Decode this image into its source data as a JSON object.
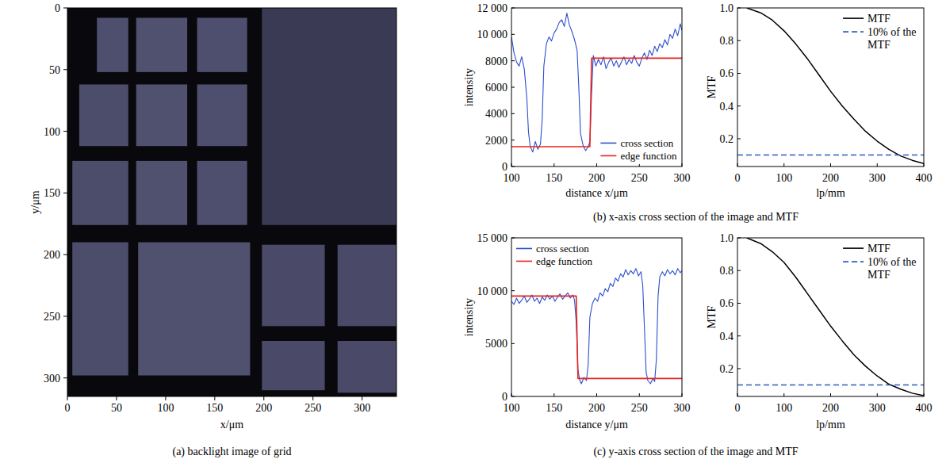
{
  "chart_data": [
    {
      "type": "image",
      "caption": "(a) backlight image of grid",
      "x_label": "x/μm",
      "y_label": "y/μm",
      "xlim": [
        0,
        335
      ],
      "ylim": [
        0,
        315
      ],
      "xticks": [
        0,
        50,
        100,
        150,
        200,
        250,
        300
      ],
      "yticks": [
        0,
        50,
        100,
        150,
        200,
        250,
        300
      ],
      "regions": [
        {
          "x": [
            30,
            62
          ],
          "y": [
            8,
            52
          ]
        },
        {
          "x": [
            70,
            122
          ],
          "y": [
            8,
            52
          ]
        },
        {
          "x": [
            132,
            183
          ],
          "y": [
            8,
            52
          ]
        },
        {
          "x": [
            12,
            62
          ],
          "y": [
            62,
            112
          ]
        },
        {
          "x": [
            70,
            122
          ],
          "y": [
            62,
            112
          ]
        },
        {
          "x": [
            132,
            183
          ],
          "y": [
            62,
            112
          ]
        },
        {
          "x": [
            5,
            62
          ],
          "y": [
            124,
            176
          ]
        },
        {
          "x": [
            70,
            122
          ],
          "y": [
            124,
            176
          ]
        },
        {
          "x": [
            132,
            183
          ],
          "y": [
            124,
            176
          ]
        },
        {
          "x": [
            5,
            62
          ],
          "y": [
            190,
            298
          ]
        },
        {
          "x": [
            72,
            186
          ],
          "y": [
            190,
            298
          ]
        },
        {
          "x": [
            198,
            335
          ],
          "y": [
            0,
            176
          ]
        },
        {
          "x": [
            198,
            262
          ],
          "y": [
            192,
            258
          ]
        },
        {
          "x": [
            275,
            335
          ],
          "y": [
            192,
            258
          ]
        },
        {
          "x": [
            198,
            262
          ],
          "y": [
            270,
            310
          ]
        },
        {
          "x": [
            275,
            335
          ],
          "y": [
            270,
            312
          ]
        }
      ],
      "colors": [
        "#4e4e6e",
        "#50506f",
        "#4e4e6e",
        "#4c4c6b",
        "#50506f",
        "#4e4e6e",
        "#4c4c6b",
        "#50506f",
        "#4e4e6e",
        "#4c4c6b",
        "#50506f",
        "#3a3a54",
        "#4a4a68",
        "#4a4a68",
        "#4a4a68",
        "#4a4a68"
      ]
    },
    {
      "type": "line",
      "caption": "(b) x-axis cross section of the image and MTF",
      "x_label": "distance x/μm",
      "y_label": "intensity",
      "xlim": [
        100,
        300
      ],
      "ylim": [
        0,
        12000
      ],
      "xticks": [
        100,
        150,
        200,
        250,
        300
      ],
      "yticks": [
        0,
        2000,
        4000,
        6000,
        8000,
        {
          "value": 10000,
          "label": "10 000"
        },
        {
          "value": 12000,
          "label": "12 000"
        }
      ],
      "legend": "lower right",
      "series": [
        {
          "name": "cross section",
          "color": "#2b4fd0",
          "x": [
            100,
            103,
            106,
            109,
            112,
            115,
            118,
            120,
            122,
            125,
            128,
            131,
            134,
            136,
            138,
            141,
            144,
            147,
            150,
            153,
            156,
            159,
            162,
            165,
            168,
            171,
            174,
            177,
            179,
            181,
            184,
            187,
            190,
            192,
            194,
            196,
            199,
            202,
            205,
            208,
            211,
            214,
            217,
            220,
            223,
            226,
            229,
            232,
            235,
            238,
            241,
            244,
            247,
            250,
            253,
            256,
            259,
            262,
            265,
            268,
            271,
            274,
            277,
            280,
            283,
            286,
            289,
            292,
            295,
            298,
            300
          ],
          "values": [
            9800,
            8600,
            7900,
            7600,
            8300,
            7400,
            5200,
            2600,
            1500,
            1100,
            1900,
            1300,
            1700,
            3500,
            7600,
            9300,
            9800,
            9500,
            10100,
            10400,
            10900,
            11100,
            10600,
            11600,
            10700,
            10200,
            9600,
            8800,
            6000,
            2500,
            1600,
            1200,
            1500,
            1900,
            5500,
            8400,
            7600,
            8100,
            7700,
            8300,
            7400,
            7900,
            8200,
            7600,
            8000,
            7500,
            7900,
            8300,
            7700,
            8100,
            7800,
            8400,
            7900,
            7600,
            8200,
            8600,
            8100,
            8800,
            8400,
            9100,
            8700,
            9300,
            9000,
            9600,
            9200,
            10000,
            9700,
            10400,
            9900,
            10800,
            10300
          ]
        },
        {
          "name": "edge function",
          "color": "#e8231f",
          "x": [
            100,
            192,
            194,
            300
          ],
          "values": [
            1500,
            1500,
            8200,
            8200
          ]
        }
      ]
    },
    {
      "type": "line",
      "x_label": "lp/mm",
      "y_label": "MTF",
      "xlim": [
        0,
        400
      ],
      "ylim": [
        0.03,
        1
      ],
      "xticks": [
        0,
        100,
        200,
        300,
        400
      ],
      "yticks": [
        0.2,
        0.4,
        0.6,
        0.8,
        {
          "value": 1,
          "label": "1.0"
        }
      ],
      "legend": "upper right",
      "series": [
        {
          "name": "MTF",
          "color": "#000000",
          "line_style": "solid",
          "x": [
            20,
            50,
            75,
            100,
            125,
            150,
            175,
            200,
            225,
            250,
            275,
            300,
            325,
            350,
            375,
            400
          ],
          "values": [
            1.0,
            0.97,
            0.925,
            0.86,
            0.78,
            0.69,
            0.59,
            0.49,
            0.4,
            0.32,
            0.245,
            0.185,
            0.135,
            0.095,
            0.068,
            0.048
          ]
        },
        {
          "name": "10% of the MTF",
          "color": "#2f5bbf",
          "line_style": "dashed",
          "x": [
            0,
            400
          ],
          "values": [
            0.1,
            0.1
          ]
        }
      ]
    },
    {
      "type": "line",
      "caption": "(c) y-axis cross section of the image and MTF",
      "x_label": "distance y/μm",
      "y_label": "intensity",
      "xlim": [
        100,
        300
      ],
      "ylim": [
        0,
        15000
      ],
      "xticks": [
        100,
        150,
        200,
        250,
        300
      ],
      "yticks": [
        0,
        5000,
        {
          "value": 10000,
          "label": "10 000"
        },
        {
          "value": 15000,
          "label": "15 000"
        }
      ],
      "legend": "upper left",
      "series": [
        {
          "name": "cross section",
          "color": "#2b4fd0",
          "x": [
            100,
            103,
            106,
            109,
            112,
            115,
            118,
            121,
            124,
            127,
            130,
            133,
            136,
            139,
            142,
            145,
            148,
            151,
            154,
            157,
            160,
            163,
            166,
            169,
            172,
            174,
            176,
            178,
            180,
            182,
            185,
            188,
            190,
            192,
            195,
            198,
            201,
            204,
            207,
            210,
            213,
            216,
            219,
            222,
            225,
            228,
            231,
            234,
            237,
            240,
            243,
            246,
            249,
            252,
            254,
            256,
            258,
            260,
            263,
            266,
            268,
            270,
            272,
            274,
            277,
            280,
            283,
            286,
            289,
            292,
            295,
            298,
            300
          ],
          "values": [
            9000,
            8700,
            9300,
            8800,
            9100,
            9500,
            8900,
            9200,
            9600,
            9000,
            9300,
            8800,
            9400,
            9100,
            9600,
            9200,
            9500,
            9000,
            9400,
            9700,
            9200,
            9500,
            9800,
            9300,
            9600,
            9100,
            7000,
            2500,
            1600,
            1200,
            1800,
            1500,
            3000,
            7500,
            8800,
            9300,
            9000,
            9800,
            9500,
            10200,
            9900,
            10700,
            10400,
            11200,
            10900,
            11600,
            11300,
            12000,
            11500,
            11900,
            11600,
            12100,
            11400,
            11800,
            10500,
            6500,
            2300,
            1500,
            1200,
            1700,
            1400,
            3500,
            9500,
            11300,
            11800,
            11400,
            12000,
            11600,
            11900,
            11500,
            12100,
            11700,
            11900
          ]
        },
        {
          "name": "edge function",
          "color": "#e8231f",
          "x": [
            100,
            176,
            178,
            300
          ],
          "values": [
            9500,
            9500,
            1700,
            1700
          ]
        }
      ]
    },
    {
      "type": "line",
      "x_label": "lp/mm",
      "y_label": "MTF",
      "xlim": [
        0,
        400
      ],
      "ylim": [
        0.03,
        1
      ],
      "xticks": [
        0,
        100,
        200,
        300,
        400
      ],
      "yticks": [
        0.2,
        0.4,
        0.6,
        0.8,
        {
          "value": 1,
          "label": "1.0"
        }
      ],
      "legend": "upper right",
      "series": [
        {
          "name": "MTF",
          "color": "#000000",
          "line_style": "solid",
          "x": [
            20,
            50,
            75,
            100,
            125,
            150,
            175,
            200,
            225,
            250,
            275,
            300,
            325,
            350,
            375,
            400
          ],
          "values": [
            1.0,
            0.965,
            0.915,
            0.85,
            0.76,
            0.66,
            0.56,
            0.46,
            0.37,
            0.285,
            0.215,
            0.155,
            0.105,
            0.075,
            0.05,
            0.035
          ]
        },
        {
          "name": "10% of the MTF",
          "color": "#2f5bbf",
          "line_style": "dashed",
          "x": [
            0,
            400
          ],
          "values": [
            0.1,
            0.1
          ]
        }
      ]
    }
  ]
}
